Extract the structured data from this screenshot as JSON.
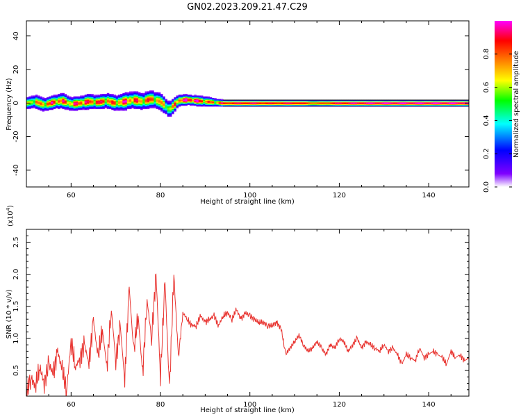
{
  "title": "GN02.2023.209.21.47.C29",
  "chart_data": [
    {
      "type": "heatmap",
      "xlabel": "Height of straight line (km)",
      "ylabel": "Frequency (Hz)",
      "xlim": [
        50,
        149
      ],
      "ylim": [
        -50,
        49
      ],
      "xticks": [
        60,
        80,
        100,
        120,
        140
      ],
      "yticks": [
        -40,
        -20,
        0,
        20,
        40
      ],
      "colorbar": {
        "label": "Normalized spectral amplitude",
        "range": [
          0,
          1
        ],
        "ticks": [
          0.0,
          0.2,
          0.4,
          0.6,
          0.8
        ],
        "colormap": [
          "#ffffff",
          "#7f00ff",
          "#0000ff",
          "#00ffff",
          "#00ff00",
          "#ffff00",
          "#ff7f00",
          "#ff0000",
          "#ff00ff"
        ]
      },
      "ridge": [
        {
          "x": 50,
          "y": 0.0,
          "amp": 0.6,
          "spread": 3.5
        },
        {
          "x": 52,
          "y": 1.0,
          "amp": 0.7,
          "spread": 4
        },
        {
          "x": 54,
          "y": -1.0,
          "amp": 0.75,
          "spread": 4
        },
        {
          "x": 56,
          "y": 0.5,
          "amp": 0.85,
          "spread": 4
        },
        {
          "x": 58,
          "y": 1.5,
          "amp": 0.8,
          "spread": 4.5
        },
        {
          "x": 60,
          "y": -0.5,
          "amp": 0.75,
          "spread": 4
        },
        {
          "x": 62,
          "y": 0.0,
          "amp": 0.9,
          "spread": 4
        },
        {
          "x": 64,
          "y": 1.0,
          "amp": 0.8,
          "spread": 4.5
        },
        {
          "x": 66,
          "y": 0.5,
          "amp": 0.85,
          "spread": 4
        },
        {
          "x": 68,
          "y": 1.5,
          "amp": 0.8,
          "spread": 4.5
        },
        {
          "x": 70,
          "y": 0.0,
          "amp": 0.75,
          "spread": 4.5
        },
        {
          "x": 72,
          "y": 1.0,
          "amp": 0.85,
          "spread": 5
        },
        {
          "x": 74,
          "y": 2.0,
          "amp": 0.8,
          "spread": 5
        },
        {
          "x": 76,
          "y": 1.0,
          "amp": 0.75,
          "spread": 5
        },
        {
          "x": 78,
          "y": 2.5,
          "amp": 0.8,
          "spread": 5
        },
        {
          "x": 80,
          "y": 1.0,
          "amp": 0.7,
          "spread": 5
        },
        {
          "x": 82,
          "y": -4.0,
          "amp": 0.6,
          "spread": 5
        },
        {
          "x": 84,
          "y": 1.5,
          "amp": 0.85,
          "spread": 3.5
        },
        {
          "x": 86,
          "y": 2.0,
          "amp": 0.95,
          "spread": 3
        },
        {
          "x": 88,
          "y": 1.5,
          "amp": 0.95,
          "spread": 3
        },
        {
          "x": 90,
          "y": 1.0,
          "amp": 0.8,
          "spread": 3
        },
        {
          "x": 92,
          "y": 0.5,
          "amp": 0.75,
          "spread": 2.5
        },
        {
          "x": 94,
          "y": 0.0,
          "amp": 0.9,
          "spread": 2
        },
        {
          "x": 100,
          "y": 0.0,
          "amp": 0.95,
          "spread": 2
        },
        {
          "x": 105,
          "y": 0.0,
          "amp": 0.9,
          "spread": 2
        },
        {
          "x": 110,
          "y": 0.0,
          "amp": 0.95,
          "spread": 2
        },
        {
          "x": 115,
          "y": 0.0,
          "amp": 0.8,
          "spread": 2
        },
        {
          "x": 120,
          "y": 0.0,
          "amp": 0.95,
          "spread": 2
        },
        {
          "x": 130,
          "y": 0.0,
          "amp": 1.0,
          "spread": 2
        },
        {
          "x": 140,
          "y": 0.0,
          "amp": 1.0,
          "spread": 2
        },
        {
          "x": 149,
          "y": 0.0,
          "amp": 1.0,
          "spread": 2
        }
      ]
    },
    {
      "type": "line",
      "xlabel": "Height of straight line (km)",
      "ylabel": "SNR (10 * v/v)",
      "y_multiplier": "(x10",
      "y_multiplier_exp": "4",
      "y_multiplier_close": ")",
      "xlim": [
        50,
        149
      ],
      "ylim": [
        0.1,
        2.7
      ],
      "xticks": [
        60,
        80,
        100,
        120,
        140
      ],
      "yticks": [
        0.5,
        1.0,
        1.5,
        2.0,
        2.5
      ],
      "color": "#e8322e",
      "series": [
        {
          "x": [
            50,
            51,
            52,
            53,
            54,
            55,
            56,
            57,
            58,
            59,
            60,
            61,
            62,
            63,
            64,
            65,
            66,
            67,
            68,
            69,
            70,
            71,
            72,
            73,
            74,
            75,
            76,
            77,
            78,
            79,
            80,
            81,
            82,
            83,
            84,
            85,
            86,
            87,
            88,
            89,
            90,
            91,
            92,
            93,
            94,
            95,
            96,
            97,
            98,
            99,
            100,
            101,
            102,
            103,
            104,
            105,
            106,
            107,
            108,
            109,
            110,
            111,
            112,
            113,
            114,
            115,
            116,
            117,
            118,
            119,
            120,
            121,
            122,
            123,
            124,
            125,
            126,
            127,
            128,
            129,
            130,
            131,
            132,
            133,
            134,
            135,
            136,
            137,
            138,
            139,
            140,
            141,
            142,
            143,
            144,
            145,
            146,
            147,
            148,
            149
          ],
          "y": [
            0.15,
            0.4,
            0.25,
            0.55,
            0.3,
            0.6,
            0.45,
            0.8,
            0.5,
            0.2,
            0.95,
            0.55,
            0.7,
            0.9,
            0.6,
            1.3,
            0.7,
            1.15,
            0.55,
            1.45,
            0.65,
            1.2,
            0.35,
            1.8,
            0.8,
            1.35,
            0.45,
            1.6,
            1.0,
            2.0,
            0.4,
            1.9,
            0.2,
            2.0,
            0.7,
            1.4,
            1.3,
            1.2,
            1.2,
            1.35,
            1.25,
            1.3,
            1.35,
            1.2,
            1.35,
            1.4,
            1.3,
            1.45,
            1.3,
            1.4,
            1.35,
            1.3,
            1.25,
            1.25,
            1.2,
            1.2,
            1.25,
            1.15,
            0.75,
            0.85,
            0.95,
            1.05,
            0.9,
            0.8,
            0.85,
            0.95,
            0.85,
            0.75,
            0.9,
            0.85,
            1.0,
            0.95,
            0.8,
            0.9,
            1.0,
            0.85,
            0.95,
            0.9,
            0.85,
            0.8,
            0.9,
            0.8,
            0.85,
            0.75,
            0.6,
            0.75,
            0.7,
            0.65,
            0.85,
            0.7,
            0.75,
            0.8,
            0.75,
            0.7,
            0.6,
            0.8,
            0.7,
            0.75,
            0.65,
            0.7
          ]
        }
      ]
    }
  ]
}
